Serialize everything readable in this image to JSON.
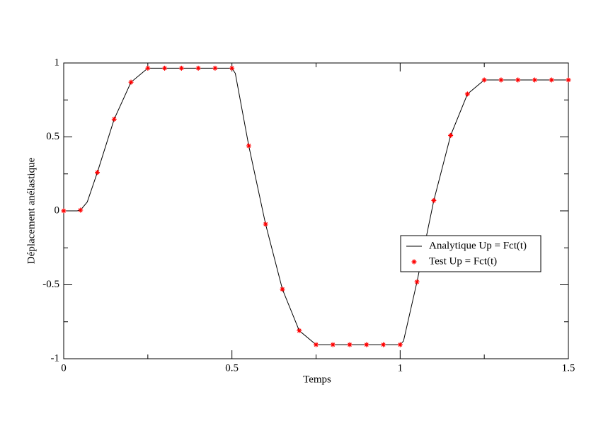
{
  "chart_data": {
    "type": "line-scatter",
    "xlabel": "Temps",
    "ylabel": "Déplacement anélastique",
    "xlim": [
      0,
      1.5
    ],
    "ylim": [
      -1,
      1
    ],
    "xticks": [
      0,
      0.5,
      1,
      1.5
    ],
    "yticks": [
      -1,
      -0.5,
      0,
      0.5,
      1
    ],
    "xminorticks": [
      0.25,
      0.75,
      1.25
    ],
    "yminorticks": [
      -0.75,
      -0.25,
      0.25,
      0.75
    ],
    "legend": "center-right",
    "series": [
      {
        "name": "Analytique Up = Fct(t)",
        "kind": "line",
        "color": "#000000",
        "x": [
          0,
          0.04,
          0.05,
          0.07,
          0.1,
          0.15,
          0.2,
          0.25,
          0.5,
          0.51,
          0.55,
          0.6,
          0.65,
          0.7,
          0.75,
          1.0,
          1.01,
          1.05,
          1.1,
          1.15,
          1.2,
          1.25,
          1.5
        ],
        "values": [
          0,
          0,
          0.005,
          0.06,
          0.26,
          0.62,
          0.87,
          0.965,
          0.965,
          0.93,
          0.44,
          -0.09,
          -0.53,
          -0.81,
          -0.905,
          -0.905,
          -0.88,
          -0.48,
          0.07,
          0.51,
          0.79,
          0.885,
          0.885
        ]
      },
      {
        "name": "Test Up = Fct(t)",
        "kind": "scatter",
        "color": "#ff0000",
        "x": [
          0,
          0.05,
          0.1,
          0.15,
          0.2,
          0.25,
          0.3,
          0.35,
          0.4,
          0.45,
          0.5,
          0.55,
          0.6,
          0.65,
          0.7,
          0.75,
          0.8,
          0.85,
          0.9,
          0.95,
          1.0,
          1.05,
          1.1,
          1.15,
          1.2,
          1.25,
          1.3,
          1.35,
          1.4,
          1.45,
          1.5
        ],
        "values": [
          0,
          0.005,
          0.26,
          0.62,
          0.87,
          0.965,
          0.965,
          0.965,
          0.965,
          0.965,
          0.965,
          0.44,
          -0.09,
          -0.53,
          -0.81,
          -0.905,
          -0.905,
          -0.905,
          -0.905,
          -0.905,
          -0.905,
          -0.48,
          0.07,
          0.51,
          0.79,
          0.885,
          0.885,
          0.885,
          0.885,
          0.885,
          0.885
        ]
      }
    ]
  }
}
